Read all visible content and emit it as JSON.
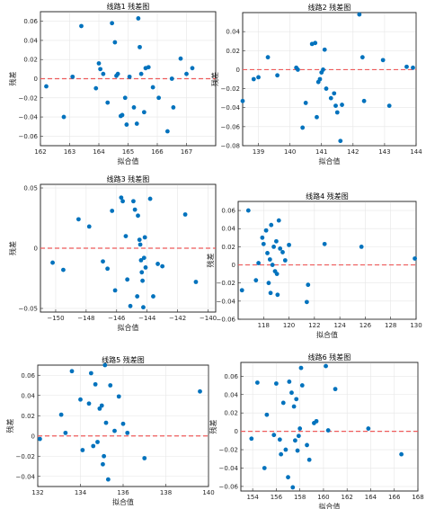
{
  "figure": {
    "background": "#ffffff",
    "point_color": "#0072BD",
    "zero_line_color": "#EE5B5B"
  },
  "chart_data": [
    {
      "type": "scatter",
      "title": "线路1 残差图",
      "xlabel": "拟合值",
      "ylabel": "残差",
      "xlim": [
        162,
        168
      ],
      "ylim": [
        -0.07,
        0.07
      ],
      "xticks": [
        162,
        163,
        164,
        165,
        166,
        167
      ],
      "yticks": [
        -0.06,
        -0.04,
        -0.02,
        0,
        0.02,
        0.04,
        0.06
      ],
      "grid": true,
      "reference_line": {
        "y": 0,
        "style": "dashed"
      },
      "x": [
        162.2,
        162.8,
        163.1,
        163.4,
        163.9,
        164.0,
        164.05,
        164.15,
        164.3,
        164.45,
        164.55,
        164.6,
        164.65,
        164.75,
        164.8,
        164.9,
        164.95,
        165.05,
        165.2,
        165.3,
        165.35,
        165.4,
        165.45,
        165.55,
        165.6,
        165.7,
        165.85,
        166.05,
        166.35,
        166.5,
        166.55,
        166.8,
        167.0,
        167.2
      ],
      "y": [
        -0.008,
        -0.04,
        0.002,
        0.055,
        -0.01,
        0.016,
        0.01,
        0.005,
        -0.025,
        0.058,
        0.038,
        0.003,
        0.005,
        -0.039,
        -0.038,
        -0.02,
        -0.048,
        0.002,
        -0.03,
        -0.047,
        0.063,
        0.033,
        0.005,
        -0.035,
        0.011,
        0.012,
        -0.009,
        -0.02,
        -0.055,
        0.0,
        -0.03,
        0.021,
        0.005,
        0.011
      ]
    },
    {
      "type": "scatter",
      "title": "线路2 残差图",
      "xlabel": "拟合值",
      "ylabel": "残差",
      "xlim": [
        138.5,
        144
      ],
      "ylim": [
        -0.08,
        0.06
      ],
      "xticks": [
        139,
        140,
        141,
        142,
        143,
        144
      ],
      "yticks": [
        -0.08,
        -0.06,
        -0.04,
        -0.02,
        0,
        0.02,
        0.04
      ],
      "grid": true,
      "reference_line": {
        "y": 0,
        "style": "dashed"
      },
      "x": [
        138.5,
        138.85,
        139.0,
        139.3,
        139.6,
        140.2,
        140.25,
        140.4,
        140.5,
        140.7,
        140.8,
        140.85,
        140.9,
        140.95,
        141.0,
        141.05,
        141.1,
        141.15,
        141.3,
        141.4,
        141.45,
        141.5,
        141.6,
        141.65,
        142.2,
        142.3,
        142.35,
        142.95,
        143.15,
        143.7,
        143.9
      ],
      "y": [
        -0.033,
        -0.01,
        -0.008,
        0.013,
        -0.006,
        0.002,
        0.0,
        -0.061,
        -0.035,
        0.027,
        0.028,
        -0.05,
        -0.013,
        -0.01,
        -0.003,
        0.0,
        0.021,
        -0.02,
        -0.03,
        -0.025,
        -0.038,
        -0.045,
        -0.075,
        -0.037,
        0.058,
        0.013,
        -0.033,
        0.01,
        -0.038,
        0.003,
        0.002
      ]
    },
    {
      "type": "scatter",
      "title": "线路3 残差图",
      "xlabel": "拟合值",
      "ylabel": "残差",
      "xlim": [
        -151,
        -139.5
      ],
      "ylim": [
        -0.053,
        0.053
      ],
      "xticks": [
        -150,
        -148,
        -146,
        -144,
        -142,
        -140
      ],
      "yticks": [
        -0.05,
        0,
        0.05
      ],
      "grid": true,
      "reference_line": {
        "y": 0,
        "style": "dashed"
      },
      "x": [
        -150.2,
        -149.5,
        -148.5,
        -147.8,
        -146.9,
        -146.6,
        -146.3,
        -146.1,
        -145.7,
        -145.6,
        -145.4,
        -145.3,
        -145.1,
        -144.9,
        -144.8,
        -144.65,
        -144.6,
        -144.5,
        -144.45,
        -144.4,
        -144.35,
        -144.3,
        -144.25,
        -144.2,
        -144.15,
        -144.1,
        -143.8,
        -143.6,
        -143.3,
        -143.0,
        -141.5,
        -140.8
      ],
      "y": [
        -0.012,
        -0.018,
        0.024,
        0.018,
        -0.011,
        -0.017,
        0.031,
        -0.035,
        0.042,
        0.039,
        0.01,
        -0.026,
        -0.048,
        0.039,
        0.032,
        -0.04,
        0.027,
        0.007,
        0.003,
        -0.01,
        -0.02,
        -0.027,
        -0.049,
        -0.008,
        0.009,
        -0.016,
        0.041,
        -0.04,
        -0.013,
        -0.015,
        0.028,
        -0.028
      ]
    },
    {
      "type": "scatter",
      "title": "线路4 残差图",
      "xlabel": "拟合值",
      "ylabel": "残差",
      "xlim": [
        116,
        130
      ],
      "ylim": [
        -0.06,
        0.07
      ],
      "xticks": [
        118,
        120,
        122,
        124,
        126,
        128,
        130
      ],
      "yticks": [
        -0.06,
        -0.04,
        -0.02,
        0,
        0.02,
        0.04,
        0.06
      ],
      "grid": true,
      "reference_line": {
        "y": 0,
        "style": "dashed"
      },
      "x": [
        116.3,
        116.8,
        117.4,
        117.6,
        117.9,
        118.0,
        118.2,
        118.3,
        118.4,
        118.5,
        118.55,
        118.6,
        118.7,
        118.8,
        118.9,
        119.0,
        119.05,
        119.1,
        119.2,
        119.3,
        119.5,
        119.7,
        120.0,
        121.4,
        121.5,
        122.8,
        125.7,
        129.9
      ],
      "y": [
        -0.028,
        0.06,
        -0.017,
        0.002,
        0.03,
        0.023,
        0.038,
        0.013,
        -0.02,
        0.006,
        -0.031,
        0.044,
        0.0,
        0.02,
        -0.007,
        0.026,
        -0.01,
        -0.033,
        0.049,
        0.018,
        0.014,
        0.005,
        0.022,
        -0.041,
        -0.022,
        0.023,
        0.02,
        0.007
      ]
    },
    {
      "type": "scatter",
      "title": "线路5 残差图",
      "xlabel": "拟合值",
      "ylabel": "残差",
      "xlim": [
        132,
        140
      ],
      "ylim": [
        -0.05,
        0.07
      ],
      "xticks": [
        132,
        134,
        136,
        138,
        140
      ],
      "yticks": [
        -0.04,
        -0.02,
        0,
        0.02,
        0.04,
        0.06
      ],
      "grid": true,
      "reference_line": {
        "y": 0,
        "style": "dashed"
      },
      "x": [
        132.1,
        133.1,
        133.3,
        133.6,
        134.0,
        134.1,
        134.4,
        134.5,
        134.6,
        134.7,
        134.8,
        134.9,
        135.0,
        135.05,
        135.1,
        135.15,
        135.2,
        135.3,
        135.4,
        135.6,
        135.8,
        136.0,
        136.2,
        137.0,
        139.6
      ],
      "y": [
        -0.003,
        0.021,
        0.003,
        0.064,
        0.036,
        -0.014,
        0.032,
        0.062,
        -0.01,
        0.051,
        -0.006,
        0.027,
        0.03,
        -0.028,
        -0.02,
        0.07,
        0.013,
        -0.043,
        0.05,
        0.005,
        0.039,
        0.012,
        0.003,
        -0.022,
        0.044
      ]
    },
    {
      "type": "scatter",
      "title": "线路6 残差图",
      "xlabel": "拟合值",
      "ylabel": "残差",
      "xlim": [
        153,
        168
      ],
      "ylim": [
        -0.065,
        0.075
      ],
      "xticks": [
        154,
        156,
        158,
        160,
        162,
        164,
        166,
        168
      ],
      "yticks": [
        -0.06,
        -0.04,
        -0.02,
        0,
        0.02,
        0.04,
        0.06
      ],
      "grid": true,
      "reference_line": {
        "y": 0,
        "style": "dashed"
      },
      "x": [
        153.9,
        154.4,
        155.0,
        155.2,
        155.8,
        156.0,
        156.3,
        156.4,
        156.6,
        156.8,
        157.0,
        157.1,
        157.3,
        157.4,
        157.5,
        157.6,
        157.7,
        157.8,
        157.9,
        158.0,
        158.1,
        158.2,
        158.6,
        158.8,
        159.2,
        159.4,
        160.2,
        160.4,
        161.0,
        163.8,
        166.6
      ],
      "y": [
        -0.008,
        0.053,
        -0.04,
        0.018,
        -0.004,
        0.052,
        -0.009,
        -0.025,
        0.031,
        -0.02,
        -0.05,
        0.054,
        0.042,
        -0.061,
        0.027,
        -0.01,
        0.035,
        -0.021,
        -0.005,
        0.003,
        0.069,
        0.05,
        -0.015,
        -0.031,
        0.009,
        0.011,
        0.071,
        0.001,
        0.046,
        0.003,
        -0.025
      ]
    }
  ]
}
